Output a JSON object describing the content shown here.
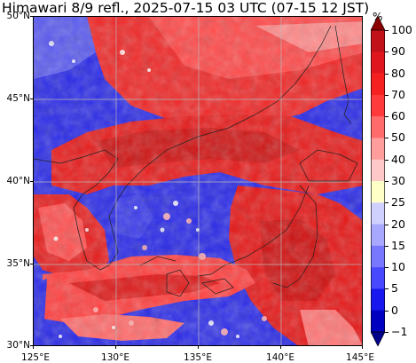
{
  "title": "Himawari 8/9 refl., 2025-07-15 03 UTC (07-15 12 JST)",
  "map": {
    "lon_range": [
      125,
      145
    ],
    "lat_range": [
      30,
      50
    ],
    "gridlines": true,
    "x_ticks": [
      "125°E",
      "130°E",
      "135°E",
      "140°E",
      "145°E"
    ],
    "y_ticks": [
      "30°N",
      "35°N",
      "40°N",
      "45°N",
      "50°N"
    ]
  },
  "colorbar": {
    "unit": "%",
    "labels": [
      "100",
      "90",
      "80",
      "70",
      "60",
      "50",
      "40",
      "30",
      "25",
      "20",
      "15",
      "10",
      "5",
      "0",
      "−1"
    ],
    "colors": [
      "#8b0000",
      "#c1121a",
      "#e0161e",
      "#f52020",
      "#ff3a3a",
      "#ff6b6b",
      "#ff9c9c",
      "#ffc8c8",
      "#ffffc8",
      "#d0d0ff",
      "#a8a8ff",
      "#7878ff",
      "#4848ff",
      "#1818ee",
      "#0000c0",
      "#00008b"
    ]
  }
}
